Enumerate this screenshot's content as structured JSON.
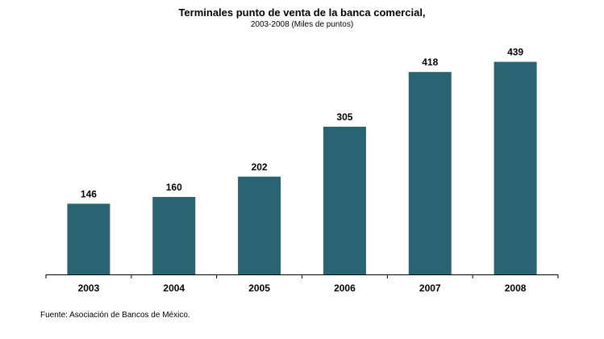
{
  "chart_data": {
    "type": "bar",
    "title": "Terminales punto de venta de la banca comercial,",
    "subtitle": "2003-2008  (Miles de puntos)",
    "categories": [
      "2003",
      "2004",
      "2005",
      "2006",
      "2007",
      "2008"
    ],
    "values": [
      146,
      160,
      202,
      305,
      418,
      439
    ],
    "data_labels": [
      "146",
      "160",
      "202",
      "305",
      "418",
      "439"
    ],
    "ylim": [
      0,
      500
    ],
    "grid": false,
    "legend": "none",
    "bar_color": "#2a6472"
  },
  "footer": {
    "source": "Fuente: Asociación de Bancos de México."
  }
}
